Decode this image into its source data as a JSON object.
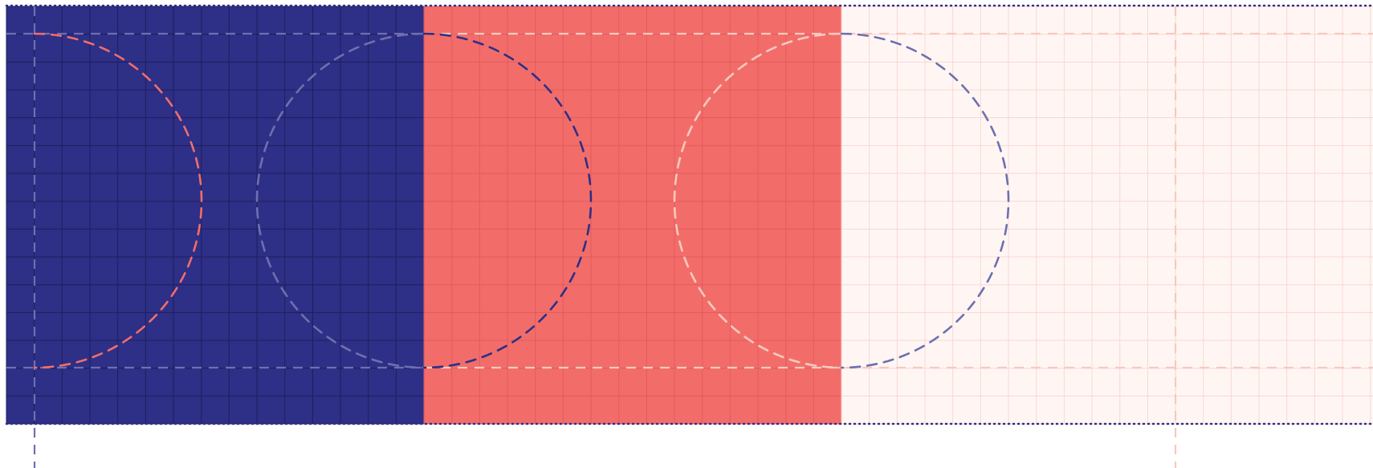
{
  "artwork": {
    "colors": {
      "background": "#ffffff",
      "navy": "#2e2f86",
      "navy_grid": "#1e1f5e",
      "coral": "#f26d6a",
      "coral_grid": "#e45a5c",
      "cream": "#fff6f4",
      "cream_grid": "#f8d7d0",
      "navy_dashed": "#6f6fb0",
      "cream_dashed": "#f7c9be",
      "dotted_border": "#2e2f86"
    },
    "panels": [
      {
        "name": "navy-panel"
      },
      {
        "name": "coral-panel"
      },
      {
        "name": "cream-panel"
      }
    ],
    "arcs": [
      {
        "name": "coral-right-arc"
      },
      {
        "name": "navy-left-arc"
      },
      {
        "name": "navy-right-arc"
      },
      {
        "name": "coral-left-arc"
      },
      {
        "name": "cream-right-arc"
      }
    ]
  }
}
